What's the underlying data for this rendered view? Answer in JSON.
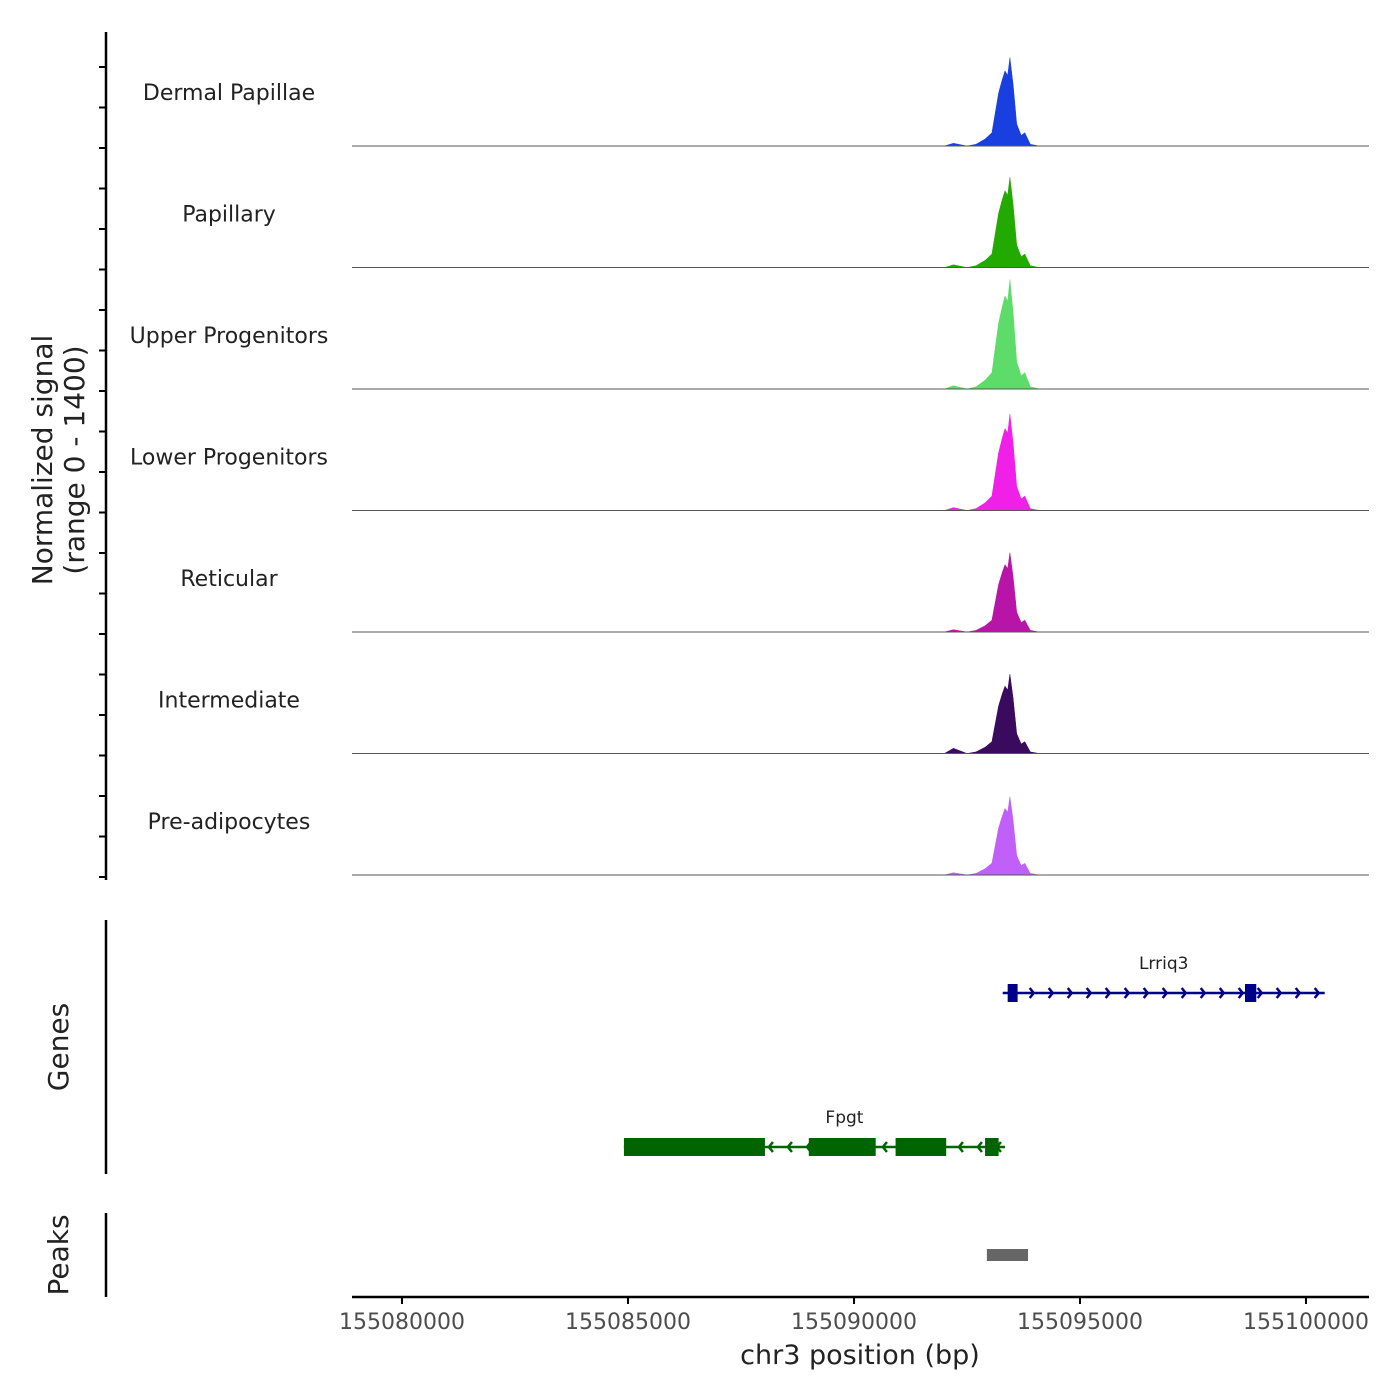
{
  "chart_data": {
    "type": "area",
    "title": "",
    "xlabel": "chr3 position (bp)",
    "ylabel": "Normalized signal\n(range 0 - 1400)",
    "ylabel_lines": [
      "Normalized signal",
      "(range 0 - 1400)"
    ],
    "ylim": [
      0,
      1400
    ],
    "xlim": [
      155078894,
      155101394
    ],
    "x_ticks": [
      155080000,
      155085000,
      155090000,
      155095000,
      155100000
    ],
    "x_tick_labels": [
      "155080000",
      "155085000",
      "155090000",
      "155095000",
      "155100000"
    ],
    "x": [
      155092000,
      155092200,
      155092500,
      155092700,
      155092900,
      155093050,
      155093200,
      155093280,
      155093340,
      155093400,
      155093450,
      155093520,
      155093600,
      155093700,
      155093780,
      155093900,
      155094100
    ],
    "series": [
      {
        "name": "Dermal Papillae",
        "color": "#1a3fe0",
        "values": [
          0,
          31,
          0,
          20,
          81,
          153,
          611,
          764,
          865,
          814,
          1018,
          713,
          255,
          122,
          153,
          20,
          0
        ]
      },
      {
        "name": "Papillary",
        "color": "#22aa00",
        "values": [
          0,
          31,
          0,
          21,
          83,
          156,
          625,
          781,
          885,
          833,
          1041,
          729,
          260,
          125,
          156,
          21,
          0
        ]
      },
      {
        "name": "Upper Progenitors",
        "color": "#5ddc6a",
        "values": [
          0,
          38,
          0,
          25,
          101,
          189,
          757,
          946,
          1072,
          1009,
          1261,
          883,
          315,
          151,
          189,
          25,
          0
        ]
      },
      {
        "name": "Lower Progenitors",
        "color": "#f020e8",
        "values": [
          0,
          33,
          0,
          22,
          89,
          167,
          667,
          833,
          944,
          889,
          1111,
          778,
          278,
          133,
          167,
          22,
          0
        ]
      },
      {
        "name": "Reticular",
        "color": "#b815a8",
        "values": [
          0,
          27,
          0,
          18,
          73,
          137,
          548,
          686,
          777,
          731,
          914,
          640,
          229,
          110,
          137,
          18,
          0
        ]
      },
      {
        "name": "Intermediate",
        "color": "#3a0a5e",
        "values": [
          0,
          60,
          0,
          18,
          73,
          137,
          548,
          686,
          777,
          731,
          914,
          640,
          229,
          110,
          137,
          18,
          0
        ]
      },
      {
        "name": "Pre-adipocytes",
        "color": "#c060f8",
        "values": [
          0,
          27,
          0,
          18,
          73,
          137,
          541,
          677,
          767,
          722,
          902,
          631,
          226,
          108,
          135,
          18,
          0
        ]
      }
    ],
    "genes_track_label": "Genes",
    "genes": [
      {
        "name": "Lrriq3",
        "strand": "+",
        "color": "#00008b",
        "start": 155093290,
        "end": 155100414,
        "exons": [
          [
            155093400,
            155093620
          ],
          [
            155098650,
            155098900
          ]
        ]
      },
      {
        "name": "Fpgt",
        "strand": "-",
        "color": "#006400",
        "start": 155084910,
        "end": 155093340,
        "exons": [
          [
            155084910,
            155088030
          ],
          [
            155089000,
            155090480
          ],
          [
            155090920,
            155092040
          ],
          [
            155092900,
            155093200
          ]
        ]
      }
    ],
    "peaks_track_label": "Peaks",
    "peaks": [
      {
        "start": 155092940,
        "end": 155093850,
        "color": "#666666"
      }
    ]
  }
}
